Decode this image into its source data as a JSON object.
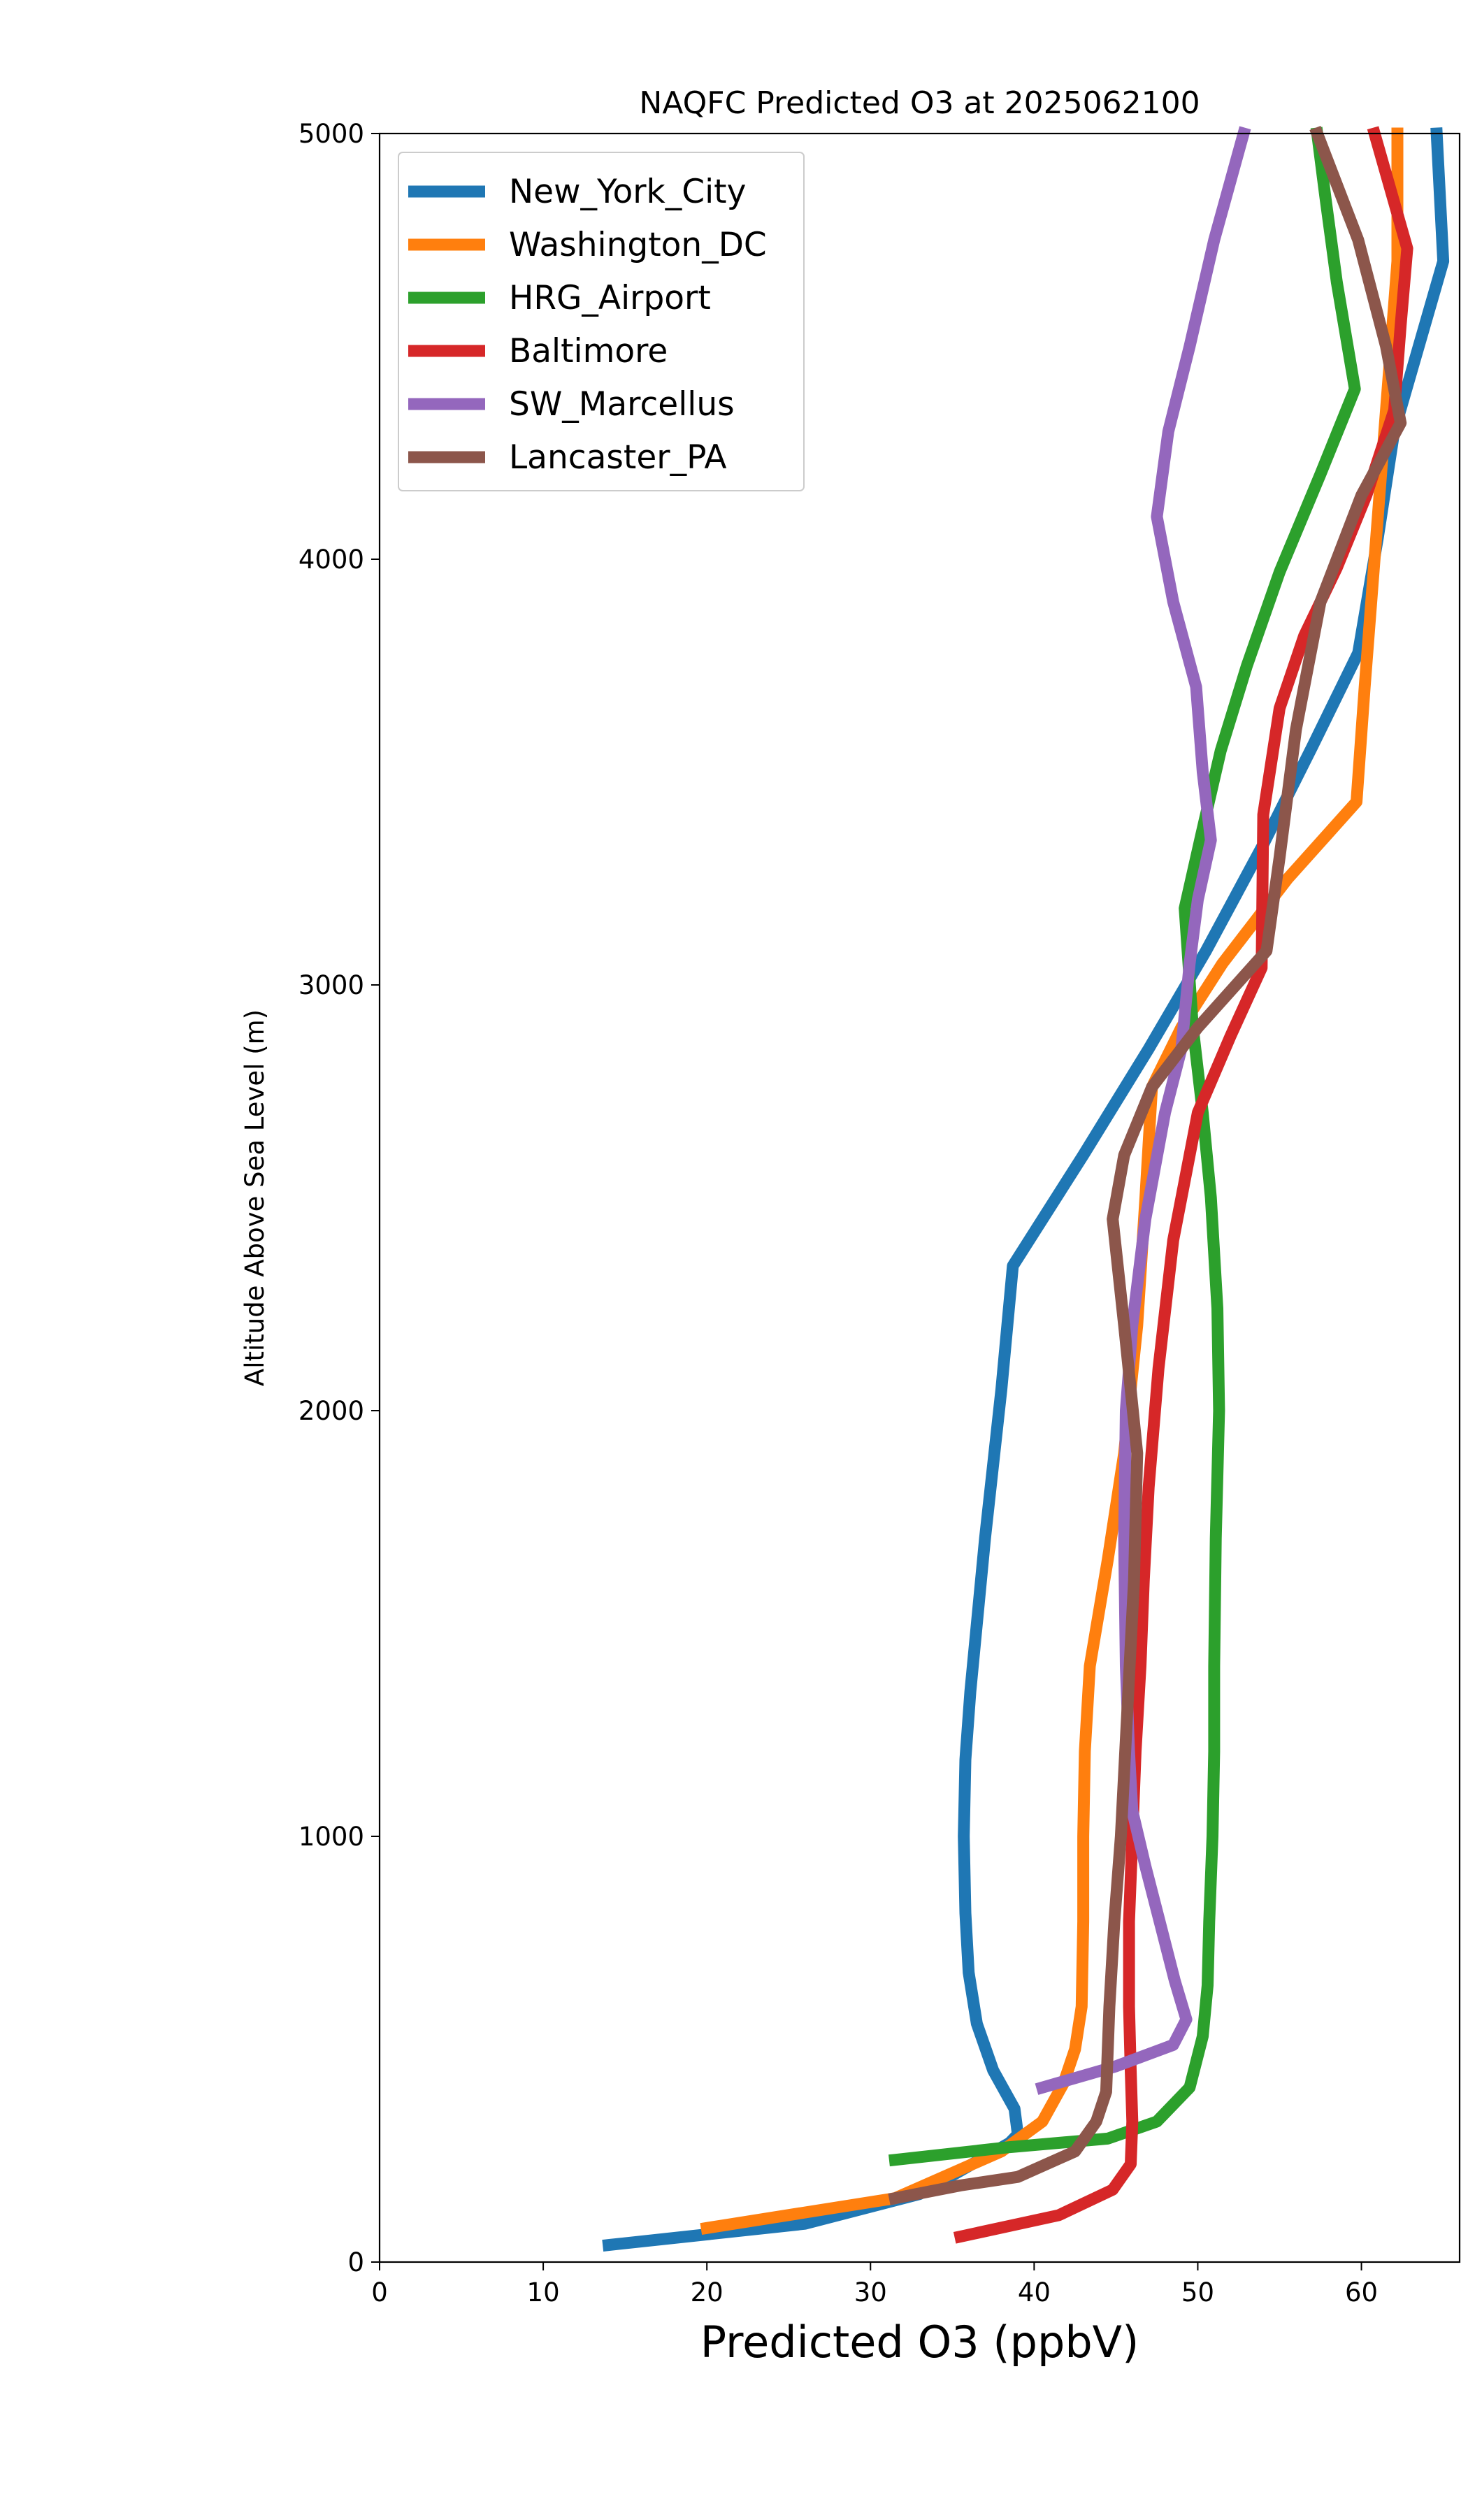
{
  "chart_data": {
    "type": "line",
    "title": "NAQFC Predicted O3 at 2025062100",
    "xlabel": "Predicted O3 (ppbV)",
    "ylabel": "Altitude Above Sea Level (m)",
    "xlim": [
      0,
      66
    ],
    "ylim": [
      0,
      5000
    ],
    "xticks": [
      0,
      10,
      20,
      30,
      40,
      50,
      60
    ],
    "yticks": [
      0,
      1000,
      2000,
      3000,
      4000,
      5000
    ],
    "grid": false,
    "legend_position": "top-left",
    "series": [
      {
        "name": "New_York_City",
        "color": "#1f77b4",
        "points": [
          [
            14.0,
            40
          ],
          [
            26.0,
            90
          ],
          [
            33.0,
            160
          ],
          [
            38.5,
            280
          ],
          [
            39.0,
            300
          ],
          [
            38.8,
            360
          ],
          [
            37.5,
            450
          ],
          [
            36.5,
            560
          ],
          [
            36.0,
            680
          ],
          [
            35.8,
            820
          ],
          [
            35.7,
            1000
          ],
          [
            35.8,
            1180
          ],
          [
            36.1,
            1340
          ],
          [
            37.0,
            1700
          ],
          [
            38.0,
            2050
          ],
          [
            38.7,
            2340
          ],
          [
            43.0,
            2600
          ],
          [
            47.0,
            2850
          ],
          [
            50.5,
            3080
          ],
          [
            54.0,
            3330
          ],
          [
            57.0,
            3560
          ],
          [
            59.8,
            3780
          ],
          [
            61.0,
            4050
          ],
          [
            62.0,
            4300
          ],
          [
            63.5,
            4500
          ],
          [
            65.0,
            4700
          ],
          [
            64.6,
            5000
          ]
        ]
      },
      {
        "name": "Washington_DC",
        "color": "#ff7f0e",
        "points": [
          [
            20.0,
            80
          ],
          [
            31.5,
            150
          ],
          [
            38.0,
            260
          ],
          [
            40.5,
            330
          ],
          [
            41.8,
            420
          ],
          [
            42.5,
            500
          ],
          [
            42.9,
            600
          ],
          [
            43.0,
            800
          ],
          [
            43.0,
            1000
          ],
          [
            43.1,
            1200
          ],
          [
            43.4,
            1400
          ],
          [
            44.5,
            1650
          ],
          [
            45.5,
            1900
          ],
          [
            46.3,
            2200
          ],
          [
            46.8,
            2500
          ],
          [
            47.2,
            2760
          ],
          [
            49.0,
            2900
          ],
          [
            51.5,
            3050
          ],
          [
            55.5,
            3250
          ],
          [
            59.7,
            3430
          ],
          [
            60.2,
            3700
          ],
          [
            60.6,
            3900
          ],
          [
            61.0,
            4100
          ],
          [
            61.4,
            4300
          ],
          [
            61.8,
            4500
          ],
          [
            62.2,
            4700
          ],
          [
            62.2,
            5000
          ]
        ]
      },
      {
        "name": "HRG_Airport",
        "color": "#2ca02c",
        "points": [
          [
            31.5,
            240
          ],
          [
            38.5,
            270
          ],
          [
            44.5,
            290
          ],
          [
            47.5,
            330
          ],
          [
            49.5,
            410
          ],
          [
            50.3,
            530
          ],
          [
            50.6,
            650
          ],
          [
            50.7,
            800
          ],
          [
            50.9,
            1000
          ],
          [
            51.0,
            1200
          ],
          [
            51.0,
            1400
          ],
          [
            51.1,
            1700
          ],
          [
            51.3,
            2000
          ],
          [
            51.2,
            2240
          ],
          [
            50.8,
            2500
          ],
          [
            50.3,
            2700
          ],
          [
            49.7,
            2900
          ],
          [
            49.2,
            3180
          ],
          [
            50.2,
            3350
          ],
          [
            51.4,
            3550
          ],
          [
            53.0,
            3750
          ],
          [
            55.0,
            3970
          ],
          [
            57.5,
            4200
          ],
          [
            59.6,
            4400
          ],
          [
            58.5,
            4650
          ],
          [
            57.8,
            4850
          ],
          [
            57.3,
            5000
          ]
        ]
      },
      {
        "name": "Baltimore",
        "color": "#d62728",
        "points": [
          [
            35.5,
            60
          ],
          [
            41.5,
            110
          ],
          [
            44.8,
            170
          ],
          [
            45.9,
            230
          ],
          [
            46.0,
            330
          ],
          [
            45.9,
            450
          ],
          [
            45.8,
            600
          ],
          [
            45.8,
            800
          ],
          [
            46.0,
            1000
          ],
          [
            46.2,
            1200
          ],
          [
            46.5,
            1400
          ],
          [
            46.7,
            1600
          ],
          [
            47.0,
            1820
          ],
          [
            47.6,
            2100
          ],
          [
            48.5,
            2400
          ],
          [
            50.0,
            2700
          ],
          [
            52.0,
            2880
          ],
          [
            53.9,
            3040
          ],
          [
            54.0,
            3400
          ],
          [
            55.0,
            3650
          ],
          [
            56.5,
            3820
          ],
          [
            58.5,
            3980
          ],
          [
            60.3,
            4150
          ],
          [
            62.0,
            4350
          ],
          [
            62.4,
            4550
          ],
          [
            62.8,
            4730
          ],
          [
            60.8,
            5000
          ]
        ]
      },
      {
        "name": "SW_Marcellus",
        "color": "#9467bd",
        "points": [
          [
            40.5,
            410
          ],
          [
            45.0,
            460
          ],
          [
            48.5,
            510
          ],
          [
            49.3,
            570
          ],
          [
            48.6,
            660
          ],
          [
            47.8,
            780
          ],
          [
            46.8,
            930
          ],
          [
            46.0,
            1060
          ],
          [
            45.8,
            1200
          ],
          [
            45.6,
            1400
          ],
          [
            45.5,
            1700
          ],
          [
            45.6,
            2000
          ],
          [
            46.0,
            2200
          ],
          [
            46.8,
            2450
          ],
          [
            48.0,
            2700
          ],
          [
            49.0,
            2850
          ],
          [
            49.5,
            3050
          ],
          [
            50.0,
            3200
          ],
          [
            50.8,
            3340
          ],
          [
            50.3,
            3500
          ],
          [
            49.9,
            3700
          ],
          [
            48.5,
            3900
          ],
          [
            47.5,
            4100
          ],
          [
            48.2,
            4300
          ],
          [
            49.5,
            4500
          ],
          [
            51.0,
            4750
          ],
          [
            52.8,
            5000
          ]
        ]
      },
      {
        "name": "Lancaster_PA",
        "color": "#8c564b",
        "points": [
          [
            31.5,
            150
          ],
          [
            35.5,
            180
          ],
          [
            39.0,
            200
          ],
          [
            42.5,
            260
          ],
          [
            43.8,
            330
          ],
          [
            44.4,
            400
          ],
          [
            44.6,
            600
          ],
          [
            44.9,
            800
          ],
          [
            45.3,
            1000
          ],
          [
            45.7,
            1300
          ],
          [
            46.1,
            1600
          ],
          [
            46.3,
            1900
          ],
          [
            45.5,
            2200
          ],
          [
            44.8,
            2450
          ],
          [
            45.5,
            2600
          ],
          [
            47.2,
            2760
          ],
          [
            50.0,
            2900
          ],
          [
            54.2,
            3080
          ],
          [
            55.0,
            3300
          ],
          [
            56.0,
            3600
          ],
          [
            57.5,
            3900
          ],
          [
            60.0,
            4150
          ],
          [
            62.4,
            4320
          ],
          [
            61.5,
            4500
          ],
          [
            59.8,
            4750
          ],
          [
            57.3,
            5000
          ]
        ]
      }
    ]
  }
}
